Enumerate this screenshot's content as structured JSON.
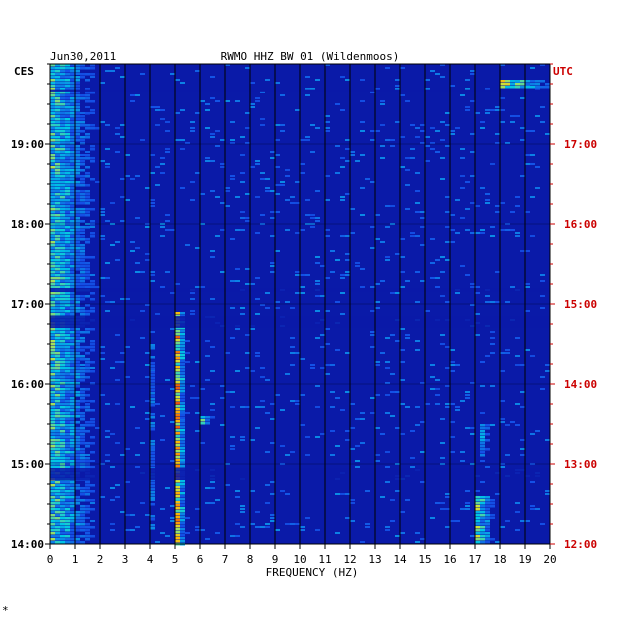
{
  "header": {
    "date": "Jun30,2011",
    "station": "RWMO HHZ BW 01 (Wildenmoos)"
  },
  "axes": {
    "left_tz": "CES",
    "right_tz": "UTC",
    "xlabel": "FREQUENCY (HZ)",
    "footnote": "*"
  },
  "colors": {
    "background": "#ffffff",
    "plot_bg": "#0a1aa8",
    "grid": "#000000",
    "right_axis": "#cc0000",
    "text": "#000000"
  },
  "chart_data": {
    "type": "heatmap",
    "title": "RWMO HHZ BW 01 (Wildenmoos)",
    "xlabel": "FREQUENCY (HZ)",
    "x_ticks": [
      0,
      1,
      2,
      3,
      4,
      5,
      6,
      7,
      8,
      9,
      10,
      11,
      12,
      13,
      14,
      15,
      16,
      17,
      18,
      19,
      20
    ],
    "xlim": [
      0,
      20
    ],
    "left_ticks": [
      "14:00",
      "15:00",
      "16:00",
      "17:00",
      "18:00",
      "19:00"
    ],
    "right_ticks": [
      "12:00",
      "13:00",
      "14:00",
      "15:00",
      "16:00",
      "17:00"
    ],
    "time_range_hours": [
      14.0,
      20.0
    ],
    "grid": true,
    "features": [
      {
        "freq": [
          0.0,
          2.0
        ],
        "time": [
          14.0,
          20.0
        ],
        "level": 0.7
      },
      {
        "freq": [
          4.0,
          4.2
        ],
        "time": [
          14.2,
          16.5
        ],
        "level": 0.45
      },
      {
        "freq": [
          5.0,
          5.3
        ],
        "time": [
          14.0,
          16.9
        ],
        "level": 0.95
      },
      {
        "freq": [
          6.0,
          6.5
        ],
        "time": [
          15.5,
          15.6
        ],
        "level": 0.8
      },
      {
        "freq": [
          17.0,
          17.7
        ],
        "time": [
          14.0,
          14.6
        ],
        "level": 0.75
      },
      {
        "freq": [
          17.2,
          17.6
        ],
        "time": [
          15.1,
          15.5
        ],
        "level": 0.55
      },
      {
        "freq": [
          18.0,
          20.0
        ],
        "time": [
          19.7,
          19.8
        ],
        "level": 0.85
      }
    ]
  }
}
